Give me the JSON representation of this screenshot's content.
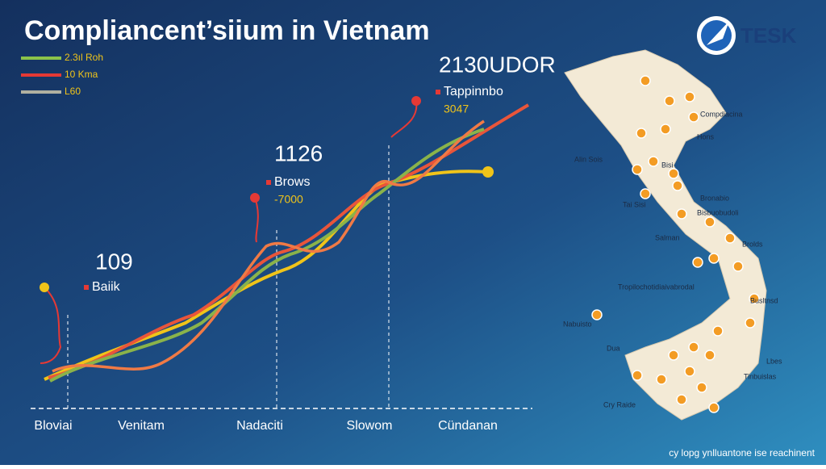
{
  "header": {
    "title": "Compliancent’siium in Vietnam",
    "logo": "TESK"
  },
  "legend": [
    {
      "label": "2.3ıl Roh",
      "color": "#8bc34a"
    },
    {
      "label": "10 Kma",
      "color": "#e53935"
    },
    {
      "label": "L60",
      "color": "#b0b0a0"
    }
  ],
  "annotations": [
    {
      "value": "109",
      "label": "Baiik"
    },
    {
      "value": "1126",
      "label": "Brows",
      "sub": "-7000"
    },
    {
      "value": "2130UDOR",
      "label": "Tappinnbo",
      "sub": "3047"
    }
  ],
  "x_labels": [
    "Bloviai",
    "Venitam",
    "Nadaciti",
    "Slowom",
    "Cündanan"
  ],
  "map_labels": [
    "Compdiacina",
    "Hons",
    "Alin Sois",
    "Bisi",
    "Bronabio",
    "Tai Sisi",
    "Bisbuobudoli",
    "Salman",
    "Brolds",
    "Tropilochotidiaivabrodal",
    "Busltnsd",
    "Nabuisto",
    "Dua",
    "Lbes",
    "Tinbuislas",
    "Cry Raide"
  ],
  "footer": "cy lopg ynlluantone ise reachinent"
}
